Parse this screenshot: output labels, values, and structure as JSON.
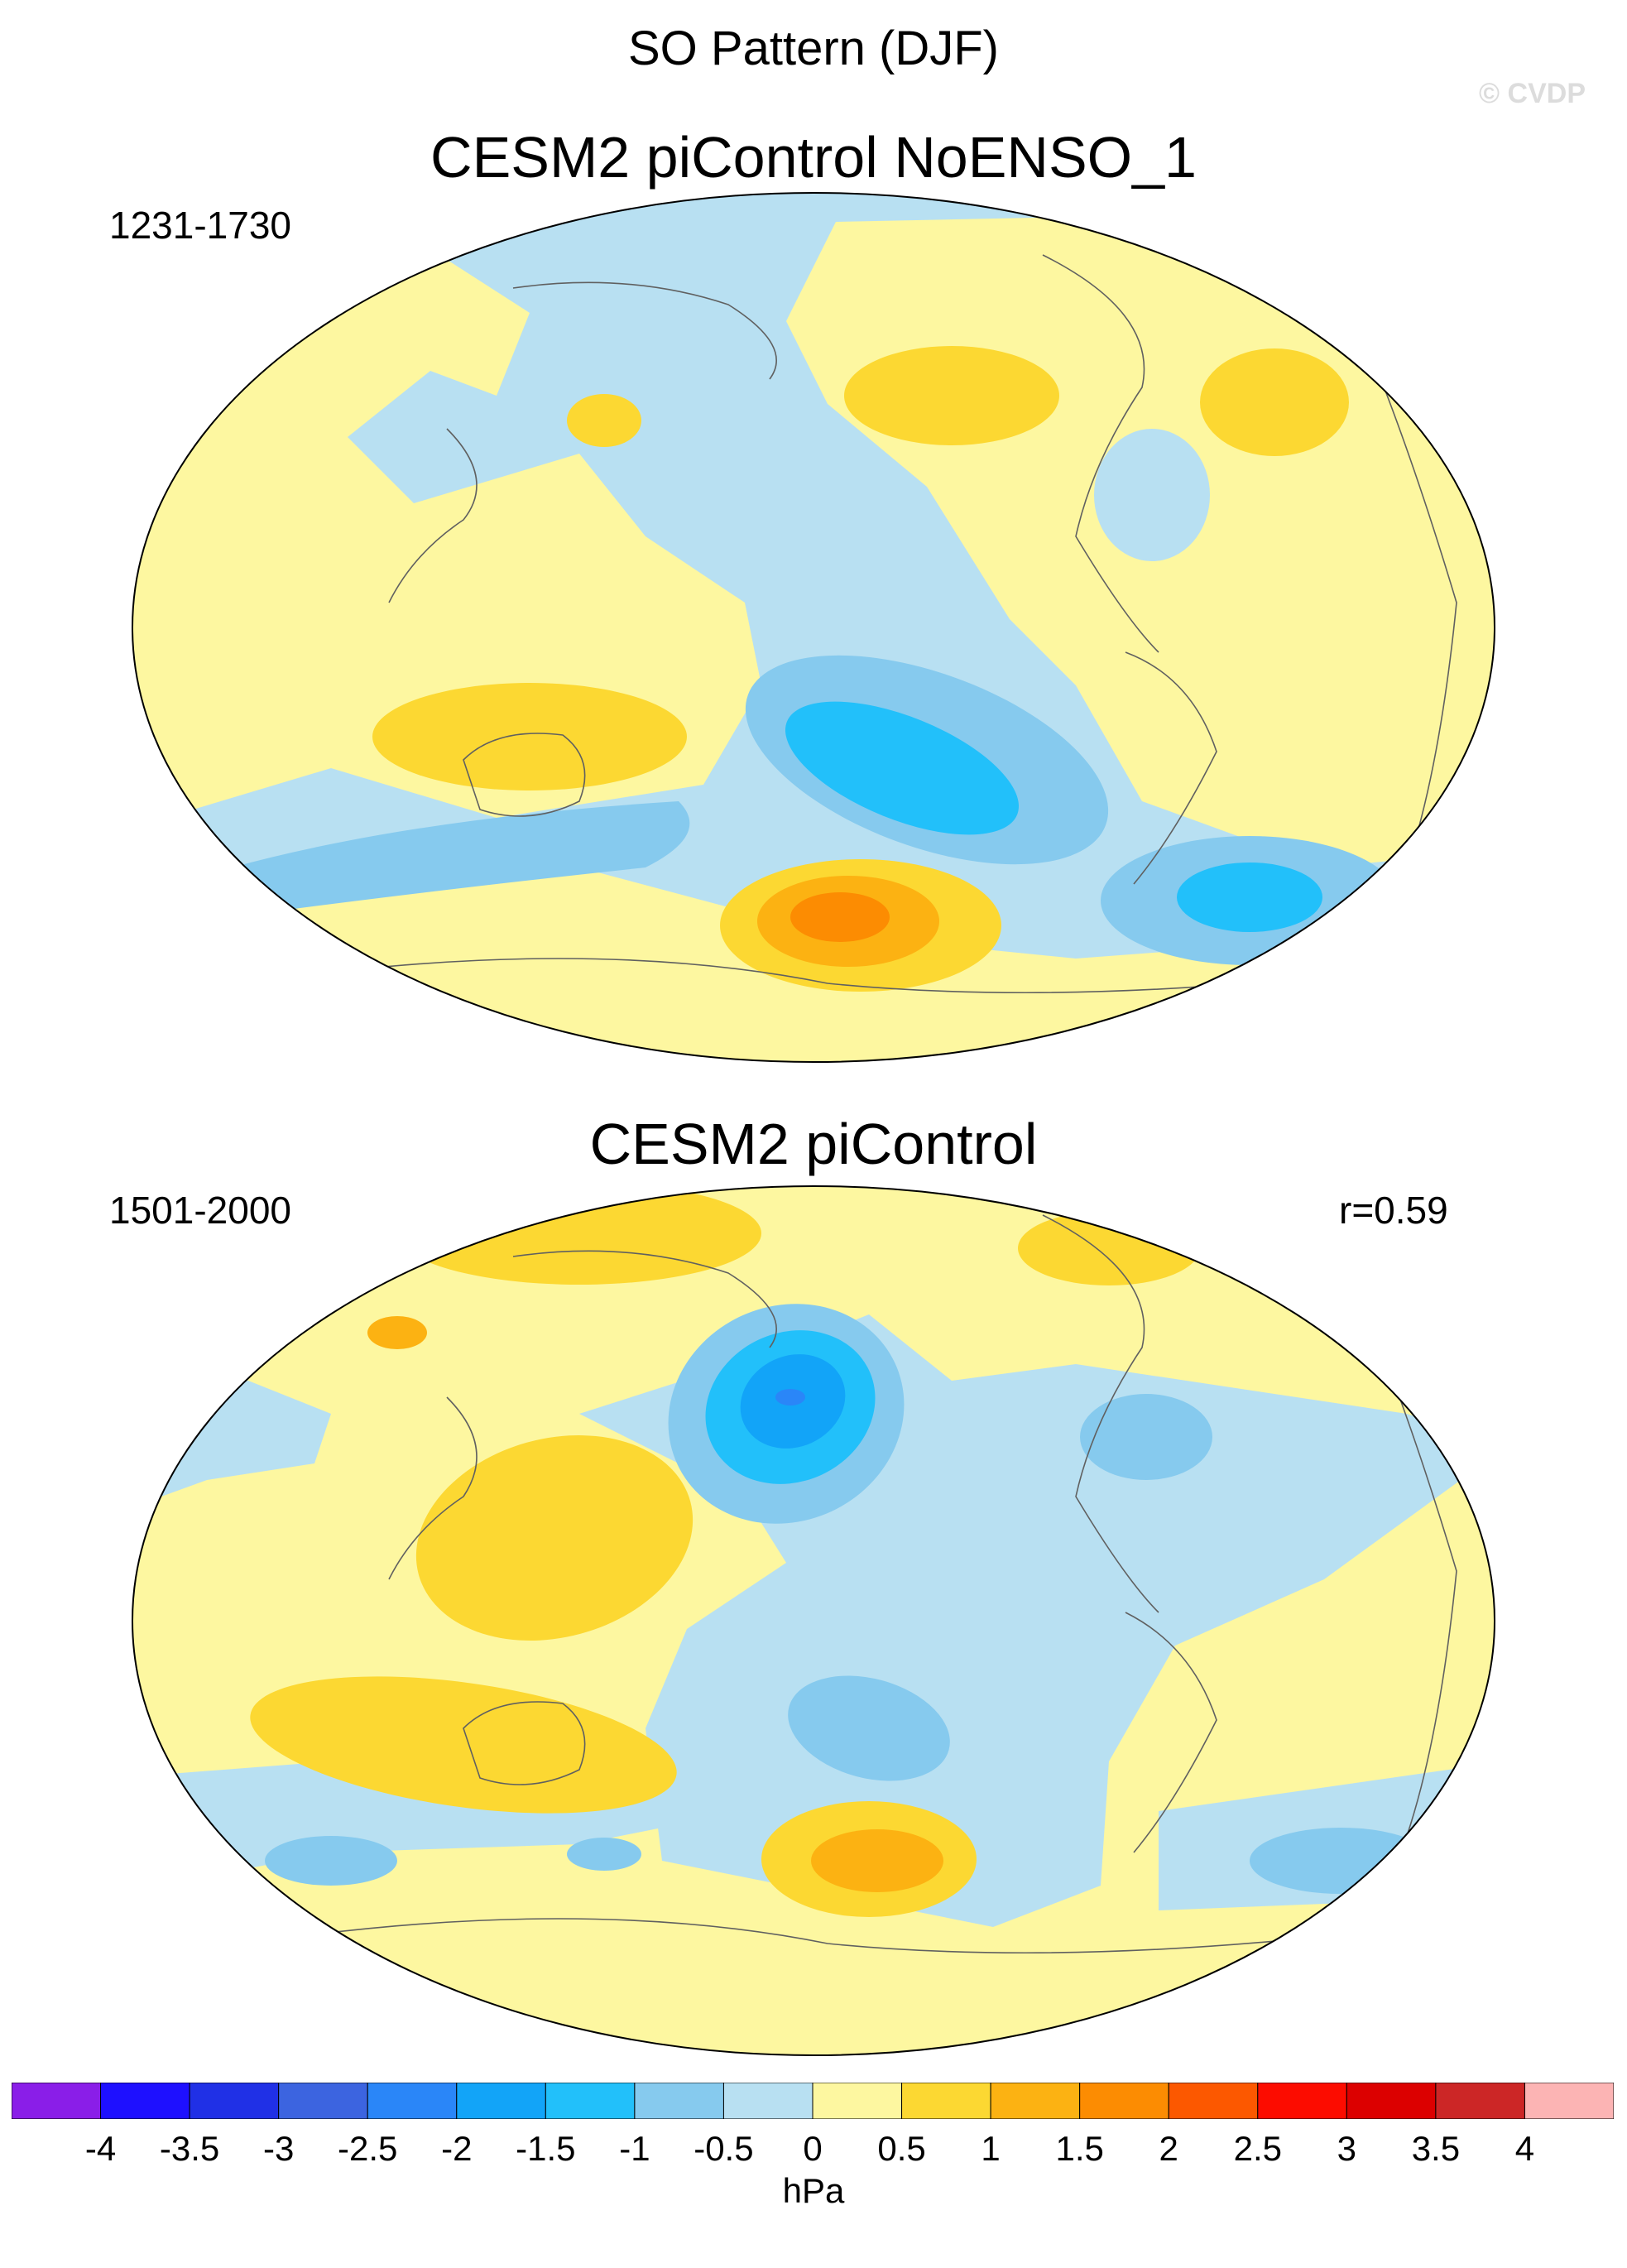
{
  "title": "SO Pattern (DJF)",
  "watermark": "© CVDP",
  "panels": [
    {
      "title": "CESM2 piControl NoENSO_1",
      "period": "1231-1730",
      "correlation": ""
    },
    {
      "title": "CESM2 piControl",
      "period": "1501-2000",
      "correlation": "r=0.59"
    }
  ],
  "colorbar": {
    "units": "hPa",
    "labels": [
      "-4",
      "-3.5",
      "-3",
      "-2.5",
      "-2",
      "-1.5",
      "-1",
      "-0.5",
      "0",
      "0.5",
      "1",
      "1.5",
      "2",
      "2.5",
      "3",
      "3.5",
      "4"
    ],
    "colors": [
      "#8a1ee8",
      "#1e10ff",
      "#2030e6",
      "#3c64e0",
      "#2a86f8",
      "#12a4f8",
      "#22c0fa",
      "#86caee",
      "#b8e0f2",
      "#fdf7a0",
      "#fcd832",
      "#fcb212",
      "#fc8c02",
      "#fc5800",
      "#fc0c00",
      "#dc0000",
      "#cc2626",
      "#fcb4b4"
    ],
    "levels": [
      -4,
      -3.5,
      -3,
      -2.5,
      -2,
      -1.5,
      -1,
      -0.5,
      0,
      0.5,
      1,
      1.5,
      2,
      2.5,
      3,
      3.5,
      4
    ]
  }
}
